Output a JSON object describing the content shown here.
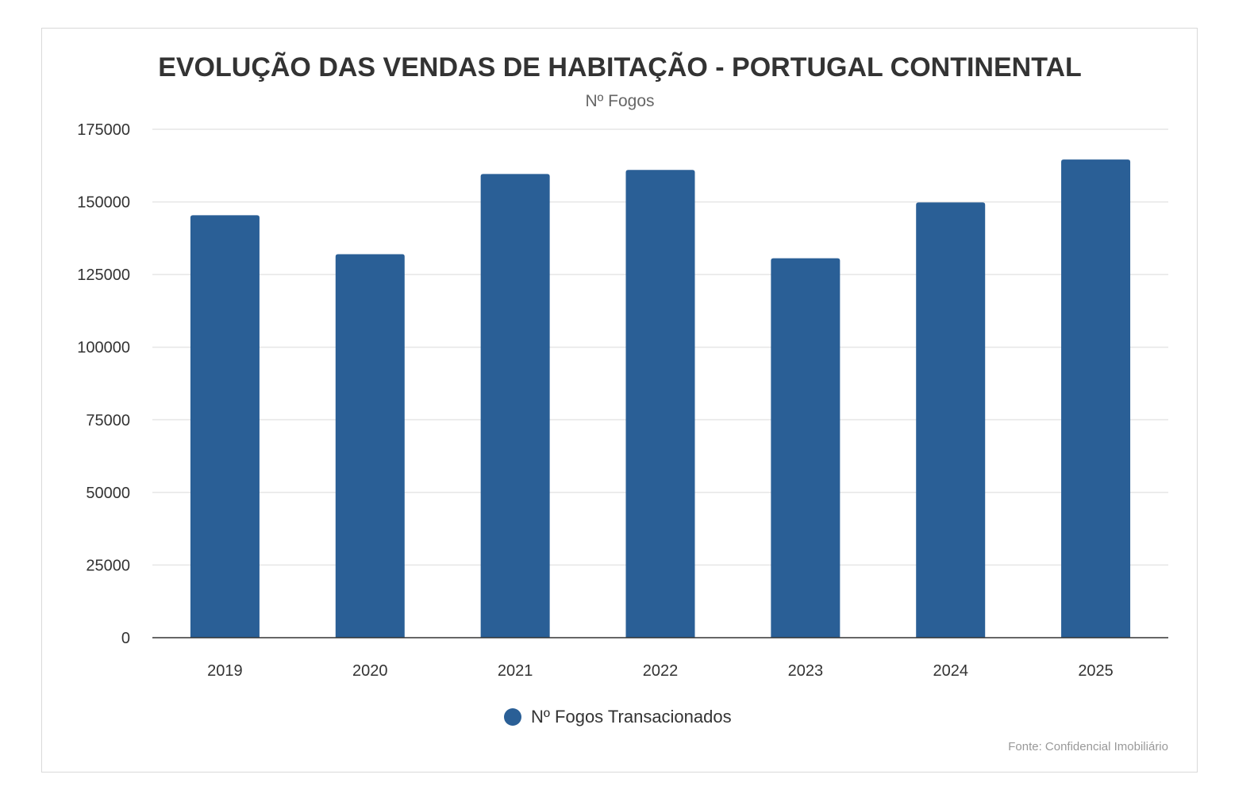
{
  "chart_data": {
    "type": "bar",
    "title": "EVOLUÇÃO DAS VENDAS DE HABITAÇÃO - PORTUGAL CONTINENTAL",
    "subtitle": "Nº Fogos",
    "categories": [
      "2019",
      "2020",
      "2021",
      "2022",
      "2023",
      "2024",
      "2025"
    ],
    "series": [
      {
        "name": "Nº Fogos Transacionados",
        "values": [
          145400,
          132000,
          159600,
          161000,
          130600,
          149800,
          164600
        ],
        "color": "#2a5f96"
      }
    ],
    "ylim": [
      0,
      175000
    ],
    "yticks": [
      0,
      25000,
      50000,
      75000,
      100000,
      125000,
      150000,
      175000
    ],
    "grid": true,
    "legend": "bottom-center",
    "credits": "Fonte: Confidencial Imobiliário"
  }
}
